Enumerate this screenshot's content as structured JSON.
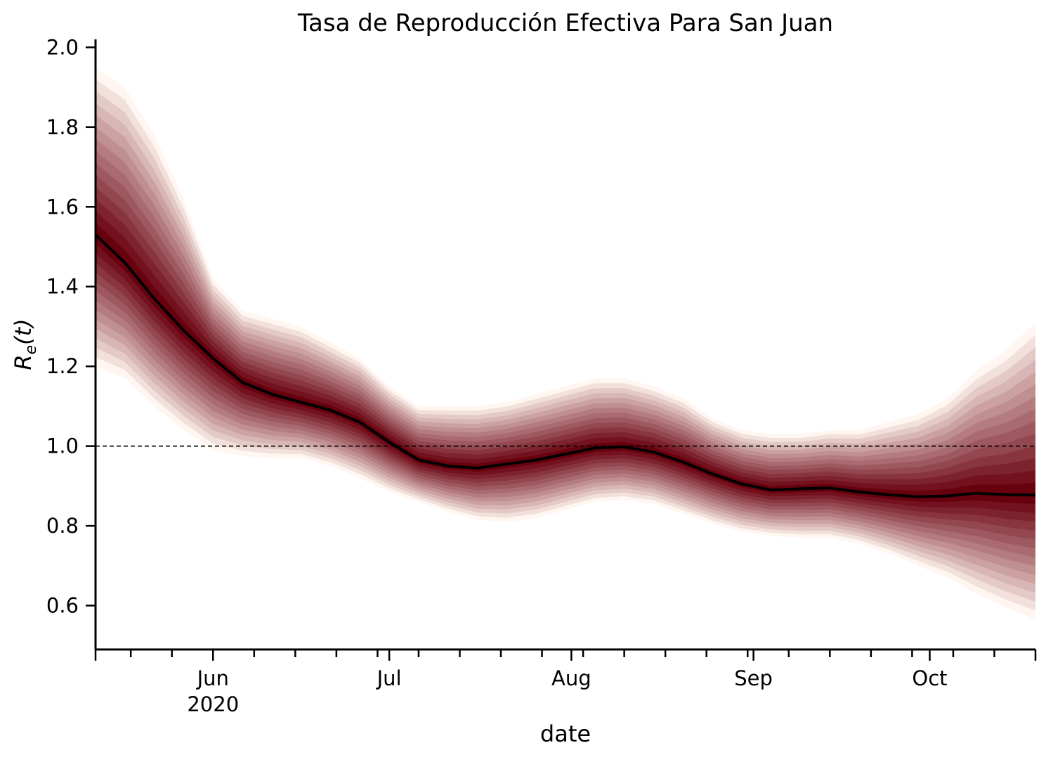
{
  "chart_data": {
    "type": "area",
    "title": "Tasa de Reproducción Efectiva Para San Juan",
    "xlabel": "date",
    "ylabel_base": "R",
    "ylabel_sub": "e",
    "ylabel_arg": "(t)",
    "x_range": [
      "2020-05-12",
      "2020-10-19"
    ],
    "ylim": [
      0.49,
      2.02
    ],
    "y_ticks": [
      "0.6",
      "0.8",
      "1.0",
      "1.2",
      "1.4",
      "1.6",
      "1.8",
      "2.0"
    ],
    "x_ticks": [
      {
        "date": "2020-06-01",
        "label": "Jun",
        "label2": "2020"
      },
      {
        "date": "2020-07-01",
        "label": "Jul",
        "label2": ""
      },
      {
        "date": "2020-08-01",
        "label": "Aug",
        "label2": ""
      },
      {
        "date": "2020-09-01",
        "label": "Sep",
        "label2": ""
      },
      {
        "date": "2020-10-01",
        "label": "Oct",
        "label2": ""
      }
    ],
    "reference_line": 1.0,
    "grid": false,
    "colors": {
      "median": "#000000",
      "band_inner": "#67000d",
      "band_outer": "#fff5f0",
      "reference": "#000000"
    },
    "series": [
      {
        "type": "median",
        "dates": [
          "2020-05-12",
          "2020-05-17",
          "2020-05-22",
          "2020-05-27",
          "2020-06-01",
          "2020-06-06",
          "2020-06-11",
          "2020-06-16",
          "2020-06-21",
          "2020-06-26",
          "2020-07-01",
          "2020-07-06",
          "2020-07-11",
          "2020-07-16",
          "2020-07-21",
          "2020-07-26",
          "2020-07-31",
          "2020-08-05",
          "2020-08-10",
          "2020-08-15",
          "2020-08-20",
          "2020-08-25",
          "2020-08-30",
          "2020-09-04",
          "2020-09-09",
          "2020-09-14",
          "2020-09-19",
          "2020-09-24",
          "2020-09-29",
          "2020-10-04",
          "2020-10-09",
          "2020-10-14",
          "2020-10-19"
        ],
        "median": [
          1.53,
          1.46,
          1.37,
          1.29,
          1.22,
          1.16,
          1.13,
          1.11,
          1.09,
          1.06,
          1.01,
          0.965,
          0.95,
          0.945,
          0.955,
          0.965,
          0.98,
          0.995,
          0.998,
          0.985,
          0.96,
          0.93,
          0.905,
          0.89,
          0.893,
          0.895,
          0.885,
          0.878,
          0.873,
          0.875,
          0.882,
          0.878,
          0.877
        ],
        "lower95": [
          1.2,
          1.17,
          1.1,
          1.04,
          0.99,
          0.975,
          0.97,
          0.97,
          0.95,
          0.92,
          0.885,
          0.86,
          0.835,
          0.815,
          0.81,
          0.82,
          0.84,
          0.86,
          0.865,
          0.855,
          0.83,
          0.805,
          0.785,
          0.775,
          0.77,
          0.77,
          0.755,
          0.73,
          0.7,
          0.67,
          0.63,
          0.595,
          0.565
        ],
        "upper95": [
          1.95,
          1.9,
          1.78,
          1.62,
          1.42,
          1.34,
          1.32,
          1.3,
          1.26,
          1.22,
          1.15,
          1.1,
          1.1,
          1.1,
          1.11,
          1.13,
          1.15,
          1.17,
          1.17,
          1.15,
          1.12,
          1.07,
          1.04,
          1.03,
          1.03,
          1.04,
          1.04,
          1.06,
          1.08,
          1.12,
          1.19,
          1.24,
          1.31
        ]
      }
    ]
  }
}
